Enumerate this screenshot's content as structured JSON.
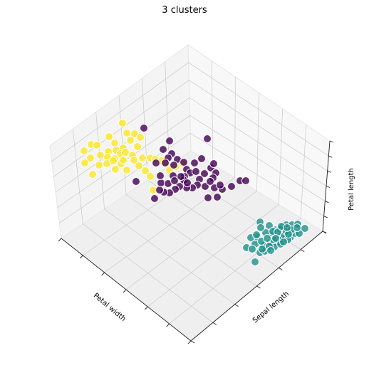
{
  "chart_data": {
    "type": "scatter3d",
    "title": "3 clusters",
    "xlabel": "Petal width",
    "ylabel": "Sepal length",
    "zlabel": "Petal length",
    "grid": true,
    "tick_labels": "none",
    "series": [
      {
        "color": "#fde725",
        "points": [
          [
            118,
            212
          ],
          [
            128,
            203
          ],
          [
            136,
            204
          ],
          [
            153,
            192
          ],
          [
            161,
            201
          ],
          [
            172,
            173
          ],
          [
            178,
            187
          ],
          [
            189,
            188
          ],
          [
            197,
            193
          ],
          [
            183,
            197
          ],
          [
            173,
            208
          ],
          [
            163,
            211
          ],
          [
            152,
            213
          ],
          [
            141,
            218
          ],
          [
            127,
            222
          ],
          [
            119,
            229
          ],
          [
            139,
            232
          ],
          [
            130,
            245
          ],
          [
            151,
            221
          ],
          [
            161,
            223
          ],
          [
            169,
            216
          ],
          [
            176,
            214
          ],
          [
            186,
            218
          ],
          [
            193,
            206
          ],
          [
            200,
            222
          ],
          [
            211,
            222
          ],
          [
            218,
            224
          ],
          [
            227,
            226
          ],
          [
            233,
            229
          ],
          [
            247,
            234
          ],
          [
            257,
            230
          ],
          [
            238,
            239
          ],
          [
            178,
            239
          ],
          [
            170,
            230
          ],
          [
            162,
            238
          ],
          [
            188,
            225
          ],
          [
            195,
            233
          ],
          [
            204,
            240
          ],
          [
            211,
            248
          ],
          [
            215,
            267
          ],
          [
            150,
            230
          ],
          [
            173,
            225
          ],
          [
            159,
            226
          ]
        ]
      },
      {
        "color": "#440154",
        "points": [
          [
            202,
            180
          ],
          [
            238,
            198
          ],
          [
            291,
            195
          ],
          [
            229,
            210
          ],
          [
            241,
            216
          ],
          [
            249,
            224
          ],
          [
            236,
            222
          ],
          [
            232,
            229
          ],
          [
            244,
            232
          ],
          [
            258,
            228
          ],
          [
            262,
            238
          ],
          [
            267,
            243
          ],
          [
            259,
            248
          ],
          [
            273,
            229
          ],
          [
            283,
            223
          ],
          [
            296,
            236
          ],
          [
            303,
            243
          ],
          [
            299,
            250
          ],
          [
            287,
            244
          ],
          [
            280,
            252
          ],
          [
            277,
            260
          ],
          [
            270,
            264
          ],
          [
            262,
            264
          ],
          [
            252,
            262
          ],
          [
            246,
            266
          ],
          [
            238,
            271
          ],
          [
            230,
            270
          ],
          [
            224,
            267
          ],
          [
            217,
            279
          ],
          [
            243,
            247
          ],
          [
            258,
            253
          ],
          [
            191,
            255
          ],
          [
            226,
            257
          ],
          [
            236,
            258
          ],
          [
            245,
            254
          ],
          [
            288,
            262
          ],
          [
            301,
            264
          ],
          [
            312,
            266
          ],
          [
            325,
            262
          ],
          [
            337,
            254
          ],
          [
            345,
            254
          ],
          [
            292,
            278
          ],
          [
            305,
            277
          ],
          [
            295,
            255
          ],
          [
            254,
            248
          ],
          [
            219,
            229
          ],
          [
            263,
            257
          ],
          [
            275,
            241
          ],
          [
            309,
            260
          ],
          [
            300,
            230
          ],
          [
            225,
            247
          ]
        ]
      },
      {
        "color": "#21918c",
        "points": [
          [
            365,
            312
          ],
          [
            378,
            317
          ],
          [
            387,
            323
          ],
          [
            395,
            320
          ],
          [
            402,
            316
          ],
          [
            410,
            316
          ],
          [
            418,
            315
          ],
          [
            428,
            321
          ],
          [
            381,
            330
          ],
          [
            391,
            332
          ],
          [
            397,
            336
          ],
          [
            408,
            333
          ],
          [
            414,
            328
          ],
          [
            420,
            328
          ],
          [
            379,
            341
          ],
          [
            389,
            341
          ],
          [
            399,
            330
          ],
          [
            404,
            337
          ],
          [
            385,
            347
          ],
          [
            376,
            350
          ],
          [
            370,
            345
          ],
          [
            358,
            343
          ],
          [
            346,
            348
          ],
          [
            354,
            350
          ],
          [
            365,
            355
          ],
          [
            372,
            353
          ],
          [
            358,
            368
          ],
          [
            393,
            322
          ],
          [
            402,
            325
          ],
          [
            384,
            337
          ],
          [
            373,
            327
          ],
          [
            361,
            333
          ],
          [
            366,
            320
          ],
          [
            409,
            323
          ],
          [
            417,
            320
          ],
          [
            394,
            343
          ],
          [
            378,
            346
          ],
          [
            367,
            339
          ],
          [
            383,
            325
          ],
          [
            390,
            326
          ],
          [
            398,
            340
          ],
          [
            352,
            334
          ],
          [
            405,
            329
          ],
          [
            375,
            335
          ],
          [
            387,
            335
          ],
          [
            395,
            318
          ],
          [
            368,
            350
          ],
          [
            380,
            352
          ],
          [
            360,
            330
          ],
          [
            403,
            320
          ]
        ]
      }
    ]
  }
}
